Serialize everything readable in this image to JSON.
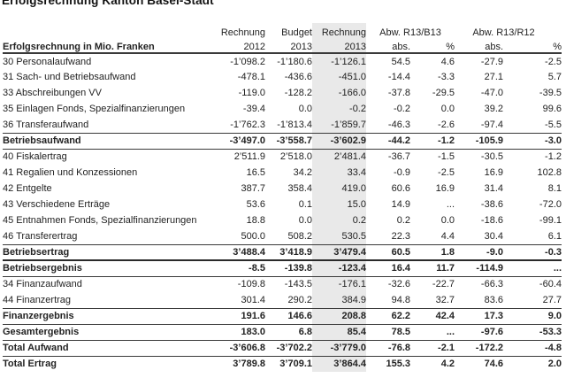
{
  "title": "Erfolgsrechnung Kanton Basel-Stadt",
  "table": {
    "header": {
      "row_label": "Erfolgsrechnung in Mio. Franken",
      "col1_line1": "Rechnung",
      "col1_line2": "2012",
      "col2_line1": "Budget",
      "col2_line2": "2013",
      "col3_line1": "Rechnung",
      "col3_line2": "2013",
      "abw_rb": "Abw. R13/B13",
      "abw_rr": "Abw. R13/R12",
      "abs_label": "abs.",
      "pct_label": "%"
    },
    "rows": [
      {
        "label": "30 Personalaufwand",
        "type": "item",
        "values": [
          "-1’098.2",
          "-1’180.6",
          "-1’126.1",
          "54.5",
          "4.6",
          "-27.9",
          "-2.5"
        ]
      },
      {
        "label": "31 Sach- und Betriebsaufwand",
        "type": "item",
        "values": [
          "-478.1",
          "-436.6",
          "-451.0",
          "-14.4",
          "-3.3",
          "27.1",
          "5.7"
        ]
      },
      {
        "label": "33 Abschreibungen VV",
        "type": "item",
        "values": [
          "-119.0",
          "-128.2",
          "-166.0",
          "-37.8",
          "-29.5",
          "-47.0",
          "-39.5"
        ]
      },
      {
        "label": "35 Einlagen Fonds, Spezialfinanzierungen",
        "type": "item",
        "values": [
          "-39.4",
          "0.0",
          "-0.2",
          "-0.2",
          "0.0",
          "39.2",
          "99.6"
        ]
      },
      {
        "label": "36 Transferaufwand",
        "type": "item",
        "values": [
          "-1’762.3",
          "-1’813.4",
          "-1’859.7",
          "-46.3",
          "-2.6",
          "-97.4",
          "-5.5"
        ]
      },
      {
        "label": "Betriebsaufwand",
        "type": "subtotal",
        "values": [
          "-3’497.0",
          "-3’558.7",
          "-3’602.9",
          "-44.2",
          "-1.2",
          "-105.9",
          "-3.0"
        ]
      },
      {
        "label": "40 Fiskalertrag",
        "type": "item",
        "values": [
          "2’511.9",
          "2’518.0",
          "2’481.4",
          "-36.7",
          "-1.5",
          "-30.5",
          "-1.2"
        ]
      },
      {
        "label": "41 Regalien und Konzessionen",
        "type": "item",
        "values": [
          "16.5",
          "34.2",
          "33.4",
          "-0.9",
          "-2.5",
          "16.9",
          "102.8"
        ]
      },
      {
        "label": "42 Entgelte",
        "type": "item",
        "values": [
          "387.7",
          "358.4",
          "419.0",
          "60.6",
          "16.9",
          "31.4",
          "8.1"
        ]
      },
      {
        "label": "43 Verschiedene Erträge",
        "type": "item",
        "values": [
          "53.6",
          "0.1",
          "15.0",
          "14.9",
          "...",
          "-38.6",
          "-72.0"
        ]
      },
      {
        "label": "45 Entnahmen Fonds, Spezialfinanzierungen",
        "type": "item",
        "values": [
          "18.8",
          "0.0",
          "0.2",
          "0.2",
          "0.0",
          "-18.6",
          "-99.1"
        ]
      },
      {
        "label": "46 Transferertrag",
        "type": "item",
        "values": [
          "500.0",
          "508.2",
          "530.5",
          "22.3",
          "4.4",
          "30.4",
          "6.1"
        ]
      },
      {
        "label": "Betriebsertrag",
        "type": "subtotal-strong",
        "values": [
          "3’488.4",
          "3’418.9",
          "3’479.4",
          "60.5",
          "1.8",
          "-9.0",
          "-0.3"
        ]
      },
      {
        "label": "Betriebsergebnis",
        "type": "result",
        "values": [
          "-8.5",
          "-139.8",
          "-123.4",
          "16.4",
          "11.7",
          "-114.9",
          "..."
        ]
      },
      {
        "label": "34 Finanzaufwand",
        "type": "item",
        "values": [
          "-109.8",
          "-143.5",
          "-176.1",
          "-32.6",
          "-22.7",
          "-66.3",
          "-60.4"
        ]
      },
      {
        "label": "44 Finanzertrag",
        "type": "item",
        "values": [
          "301.4",
          "290.2",
          "384.9",
          "94.8",
          "32.7",
          "83.6",
          "27.7"
        ]
      },
      {
        "label": "Finanzergebnis",
        "type": "subtotal",
        "values": [
          "191.6",
          "146.6",
          "208.8",
          "62.2",
          "42.4",
          "17.3",
          "9.0"
        ]
      },
      {
        "label": "Gesamtergebnis",
        "type": "result",
        "values": [
          "183.0",
          "6.8",
          "85.4",
          "78.5",
          "...",
          "-97.6",
          "-53.3"
        ]
      },
      {
        "label": "Total Aufwand",
        "type": "result",
        "values": [
          "-3’606.8",
          "-3’702.2",
          "-3’779.0",
          "-76.8",
          "-2.1",
          "-172.2",
          "-4.8"
        ]
      },
      {
        "label": "Total Ertrag",
        "type": "result-last",
        "values": [
          "3’789.8",
          "3’709.1",
          "3’864.4",
          "155.3",
          "4.2",
          "74.6",
          "2.0"
        ]
      }
    ]
  },
  "colors": {
    "highlight_column": "#e9e9e9",
    "rule": "#3a3a3a",
    "text": "#222222"
  }
}
